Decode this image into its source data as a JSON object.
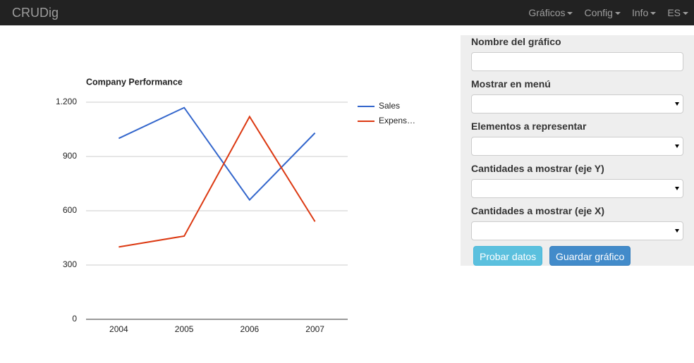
{
  "navbar": {
    "brand": "CRUDig",
    "menu": [
      "Gráficos",
      "Config",
      "Info",
      "ES"
    ]
  },
  "chart_data": {
    "type": "line",
    "title": "Company Performance",
    "categories": [
      "2004",
      "2005",
      "2006",
      "2007"
    ],
    "series": [
      {
        "name": "Sales",
        "color": "#3366cc",
        "values": [
          1000,
          1170,
          660,
          1030
        ]
      },
      {
        "name": "Expens…",
        "color": "#dc3912",
        "values": [
          400,
          460,
          1120,
          540
        ]
      }
    ],
    "ylim": [
      0,
      1200
    ],
    "yticks": [
      0,
      300,
      600,
      900,
      {
        "value": 1200,
        "label": "1.200"
      }
    ],
    "grid": true,
    "legend": "right"
  },
  "form": {
    "fields": [
      {
        "label": "Nombre del gráfico",
        "kind": "text"
      },
      {
        "label": "Mostrar en menú",
        "kind": "select"
      },
      {
        "label": "Elementos a representar",
        "kind": "select"
      },
      {
        "label": "Cantidades a mostrar (eje Y)",
        "kind": "select"
      },
      {
        "label": "Cantidades a mostrar (eje X)",
        "kind": "select"
      }
    ],
    "buttons": [
      "Probar datos",
      "Guardar gráfico"
    ]
  }
}
